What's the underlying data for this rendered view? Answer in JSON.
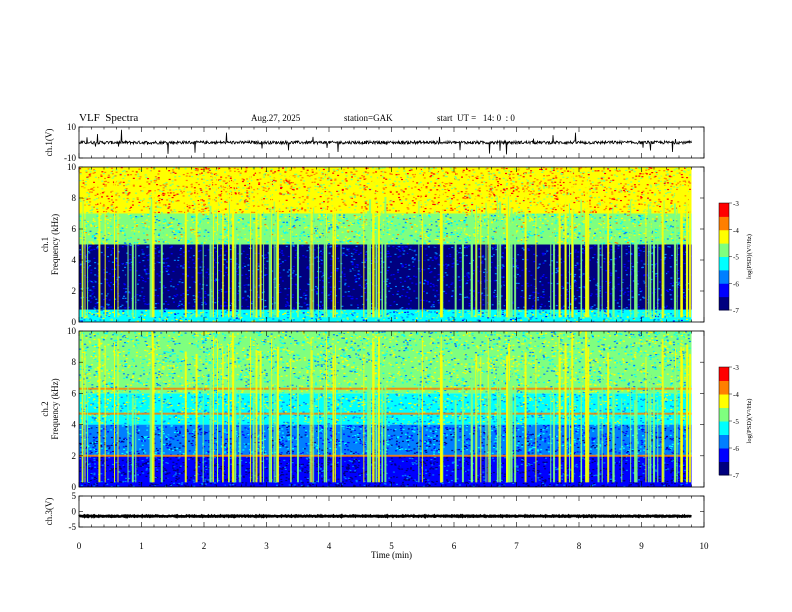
{
  "header": {
    "title": "VLF  Spectra",
    "date": "Aug.27, 2025",
    "station": "station=GAK",
    "start": "start  UT =   14: 0  : 0"
  },
  "chart_data": [
    {
      "type": "line",
      "ylabel": "ch.1(V)",
      "ylim": [
        -10,
        10
      ],
      "yticks": [
        "10",
        "-10"
      ],
      "baseline": 0,
      "noise": 2,
      "spike_amp": 8
    },
    {
      "type": "heatmap",
      "ylabel": [
        "ch.1",
        "Frequency  (kHz)"
      ],
      "ylim": [
        0,
        10
      ],
      "yticks": [
        "0",
        "2",
        "4",
        "6",
        "8",
        "10"
      ],
      "colorbar": {
        "label": "log(PSD)(V²/Hz)",
        "range": [
          -7,
          -3
        ],
        "ticks": [
          "-3",
          "-4",
          "-5",
          "-6",
          "-7"
        ]
      },
      "bands_khz": [
        {
          "from": 0,
          "to": 0.8,
          "level": -5.2
        },
        {
          "from": 0.8,
          "to": 5,
          "level": -6.6
        },
        {
          "from": 5,
          "to": 7,
          "level": -4.8
        },
        {
          "from": 7,
          "to": 10,
          "level": -4.1
        }
      ]
    },
    {
      "type": "heatmap",
      "ylabel": [
        "ch.2",
        "Frequency  (kHz)"
      ],
      "ylim": [
        0,
        10
      ],
      "yticks": [
        "0",
        "2",
        "4",
        "6",
        "8",
        "10"
      ],
      "colorbar": {
        "label": "log(PSD)(V²/Hz)",
        "range": [
          -7,
          -3
        ],
        "ticks": [
          "-3",
          "-4",
          "-5",
          "-6",
          "-7"
        ]
      },
      "bands_khz": [
        {
          "from": 0,
          "to": 2,
          "level": -6.5
        },
        {
          "from": 2,
          "to": 4,
          "level": -5.9
        },
        {
          "from": 4,
          "to": 6,
          "level": -5.1
        },
        {
          "from": 6,
          "to": 10,
          "level": -4.9
        }
      ],
      "lines_khz": [
        6.3,
        2.0,
        4.7
      ]
    },
    {
      "type": "line",
      "ylabel": "ch.3(V)",
      "ylim": [
        -5,
        5
      ],
      "yticks": [
        "5",
        "0",
        "-5"
      ],
      "baseline": -1.5,
      "noise": 0.3,
      "spike_amp": 0
    }
  ],
  "xaxis": {
    "label": "Time  (min)",
    "range": [
      0,
      10
    ],
    "ticks": [
      "0",
      "1",
      "2",
      "3",
      "4",
      "5",
      "6",
      "7",
      "8",
      "9",
      "10"
    ],
    "data_end_min": 9.8
  },
  "colors": [
    "#00007f",
    "#0000ff",
    "#007fff",
    "#00ffff",
    "#7fff7f",
    "#ffff00",
    "#ff7f00",
    "#ff0000"
  ]
}
